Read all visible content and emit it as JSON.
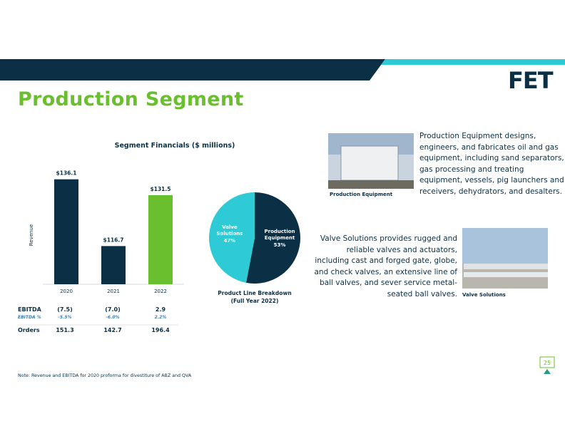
{
  "header": {
    "title": "Production Segment",
    "logo": "FET"
  },
  "chart_data": [
    {
      "type": "bar",
      "title": "Segment Financials ($ millions)",
      "y_label": "Revenue",
      "categories": [
        "2020",
        "2021",
        "2022"
      ],
      "values": [
        136.1,
        116.7,
        131.5
      ],
      "value_labels": [
        "$136.1",
        "$116.7",
        "$131.5"
      ],
      "colors": [
        "#0b2f45",
        "#0b2f45",
        "#6abf2e"
      ],
      "ylim": [
        105.6,
        141
      ]
    },
    {
      "type": "pie",
      "title": "Product Line Breakdown",
      "subtitle": "(Full Year 2022)",
      "categories": [
        "Production Equipment",
        "Valve Solutions"
      ],
      "values": [
        53,
        47
      ],
      "value_labels": [
        "53%",
        "47%"
      ],
      "colors": [
        "#0b2f45",
        "#2ecbd6"
      ]
    }
  ],
  "financials": {
    "rows": [
      [
        "EBITDA",
        "(7.5)",
        "(7.0)",
        "2.9"
      ],
      [
        "EBITDA %",
        "-5.5%",
        "-6.0%",
        "2.2%"
      ],
      [
        "Orders",
        "151.3",
        "142.7",
        "196.4"
      ]
    ]
  },
  "products": [
    {
      "caption": "Production Equipment",
      "lines": [
        "Production Equipment designs,",
        "engineers, and fabricates oil and gas",
        "equipment, including sand separators,",
        "gas processing and treating",
        "equipment, vessels, pig launchers and",
        "receivers, dehydrators, and desalters."
      ]
    },
    {
      "caption": "Valve Solutions",
      "lines": [
        "Valve Solutions provides rugged and",
        "reliable valves and actuators,",
        "including cast and forged gate, globe,",
        "and check valves, an extensive line of",
        "ball valves, and sever service metal-",
        "seated ball valves."
      ]
    }
  ],
  "footnote": "Note: Revenue and EBITDA for 2020 proforma for divestiture of ABZ and QVA",
  "page_number": "25"
}
